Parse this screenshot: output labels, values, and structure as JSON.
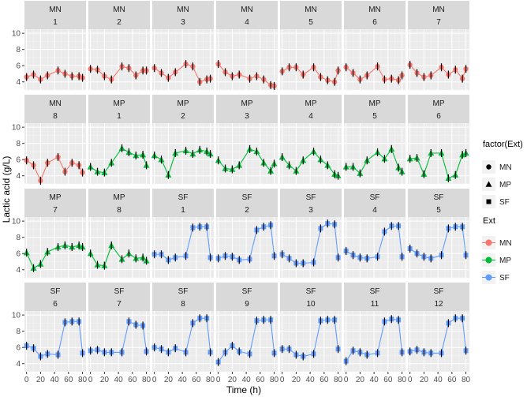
{
  "chart_data": {
    "type": "line",
    "facet_layout": "wrap, 7 columns, 4 rows, shared axes",
    "xlabel": "Time (h)",
    "ylabel": "Lactic acid (g/L)",
    "xlim": [
      -3,
      85
    ],
    "ylim": [
      3,
      10.5
    ],
    "xticks": [
      0,
      20,
      40,
      60,
      80
    ],
    "yticks": [
      4,
      6,
      8,
      10
    ],
    "x": [
      0,
      10,
      20,
      30,
      45,
      55,
      65,
      75,
      80
    ],
    "legend_shape": {
      "title": "factor(Ext)",
      "entries": [
        {
          "name": "MN",
          "shape": "circle"
        },
        {
          "name": "MP",
          "shape": "triangle"
        },
        {
          "name": "SF",
          "shape": "square"
        }
      ]
    },
    "legend_color": {
      "title": "Ext",
      "entries": [
        {
          "name": "MN",
          "color": "#F8766D"
        },
        {
          "name": "MP",
          "color": "#00BA38"
        },
        {
          "name": "SF",
          "color": "#619CFF"
        }
      ]
    },
    "colors": {
      "MN": "#F8766D",
      "MP": "#00BA38",
      "SF": "#619CFF"
    },
    "panels": [
      {
        "ext": "MN",
        "num": "1",
        "values": [
          4.6,
          4.9,
          4.3,
          4.8,
          5.4,
          5.0,
          4.7,
          4.7,
          4.5
        ]
      },
      {
        "ext": "MN",
        "num": "2",
        "values": [
          5.6,
          5.5,
          4.7,
          4.3,
          5.9,
          5.7,
          4.8,
          5.4,
          5.4
        ]
      },
      {
        "ext": "MN",
        "num": "3",
        "values": [
          5.7,
          5.1,
          4.5,
          5.2,
          6.2,
          5.9,
          4.0,
          4.3,
          4.4
        ]
      },
      {
        "ext": "MN",
        "num": "4",
        "values": [
          6.2,
          5.2,
          4.7,
          4.9,
          4.4,
          4.7,
          4.3,
          3.6,
          3.5
        ]
      },
      {
        "ext": "MN",
        "num": "5",
        "values": [
          5.3,
          5.8,
          5.8,
          4.9,
          5.8,
          4.6,
          4.2,
          4.0,
          5.4
        ]
      },
      {
        "ext": "MN",
        "num": "6",
        "values": [
          5.8,
          5.1,
          4.3,
          4.8,
          5.9,
          4.3,
          4.4,
          4.2,
          4.8
        ]
      },
      {
        "ext": "MN",
        "num": "7",
        "values": [
          6.1,
          5.1,
          4.6,
          4.8,
          5.8,
          4.9,
          5.5,
          4.4,
          5.6
        ]
      },
      {
        "ext": "MN",
        "num": "8",
        "values": [
          5.9,
          5.3,
          3.4,
          5.6,
          6.3,
          4.5,
          5.6,
          5.3,
          4.4
        ]
      },
      {
        "ext": "MP",
        "num": "1",
        "values": [
          5.1,
          4.5,
          4.4,
          5.6,
          7.4,
          6.9,
          6.5,
          6.6,
          5.3
        ]
      },
      {
        "ext": "MP",
        "num": "2",
        "values": [
          6.5,
          6.0,
          4.1,
          6.8,
          7.1,
          6.7,
          7.2,
          7.0,
          6.7
        ]
      },
      {
        "ext": "MP",
        "num": "3",
        "values": [
          5.9,
          4.9,
          4.8,
          5.3,
          7.3,
          7.0,
          5.6,
          4.6,
          5.5
        ]
      },
      {
        "ext": "MP",
        "num": "4",
        "values": [
          6.3,
          5.3,
          4.6,
          5.9,
          7.0,
          6.0,
          5.3,
          4.2,
          4.0
        ]
      },
      {
        "ext": "MP",
        "num": "5",
        "values": [
          5.1,
          5.1,
          4.3,
          5.9,
          6.9,
          6.1,
          7.3,
          5.0,
          4.5
        ]
      },
      {
        "ext": "MP",
        "num": "6",
        "values": [
          6.1,
          6.2,
          4.2,
          6.8,
          6.8,
          3.7,
          4.1,
          6.6,
          6.8
        ]
      },
      {
        "ext": "MP",
        "num": "7",
        "values": [
          6.1,
          4.2,
          4.7,
          6.2,
          6.8,
          7.0,
          6.8,
          7.0,
          6.8
        ]
      },
      {
        "ext": "MP",
        "num": "8",
        "values": [
          6.0,
          4.6,
          4.5,
          7.0,
          5.3,
          6.0,
          5.4,
          5.5,
          5.1
        ]
      },
      {
        "ext": "SF",
        "num": "1",
        "values": [
          5.9,
          5.9,
          5.2,
          5.5,
          5.7,
          9.2,
          9.3,
          9.3,
          5.5
        ]
      },
      {
        "ext": "SF",
        "num": "2",
        "values": [
          5.4,
          5.7,
          5.6,
          5.2,
          5.3,
          8.9,
          9.3,
          9.5,
          5.7
        ]
      },
      {
        "ext": "SF",
        "num": "3",
        "values": [
          5.9,
          5.4,
          4.8,
          4.8,
          4.9,
          9.1,
          9.7,
          9.6,
          5.5
        ]
      },
      {
        "ext": "SF",
        "num": "4",
        "values": [
          6.3,
          5.8,
          5.5,
          5.4,
          5.6,
          8.7,
          9.4,
          9.4,
          5.6
        ]
      },
      {
        "ext": "SF",
        "num": "5",
        "values": [
          6.6,
          6.0,
          5.6,
          5.4,
          5.8,
          9.1,
          9.3,
          9.3,
          5.8
        ]
      },
      {
        "ext": "SF",
        "num": "6",
        "values": [
          6.2,
          5.9,
          4.9,
          5.2,
          5.1,
          9.1,
          9.2,
          9.2,
          5.3
        ]
      },
      {
        "ext": "SF",
        "num": "7",
        "values": [
          5.6,
          5.7,
          5.4,
          5.4,
          5.4,
          9.2,
          8.8,
          8.7,
          5.5
        ]
      },
      {
        "ext": "SF",
        "num": "8",
        "values": [
          6.0,
          5.8,
          5.4,
          5.9,
          5.4,
          9.0,
          9.6,
          9.6,
          5.4
        ]
      },
      {
        "ext": "SF",
        "num": "9",
        "values": [
          4.2,
          5.4,
          6.2,
          5.5,
          5.2,
          9.3,
          9.4,
          9.4,
          5.3
        ]
      },
      {
        "ext": "SF",
        "num": "10",
        "values": [
          5.8,
          5.8,
          5.1,
          4.9,
          5.2,
          9.3,
          9.4,
          9.4,
          5.8
        ]
      },
      {
        "ext": "SF",
        "num": "11",
        "values": [
          4.3,
          5.6,
          5.4,
          5.1,
          5.3,
          9.2,
          9.5,
          9.4,
          5.4
        ]
      },
      {
        "ext": "SF",
        "num": "12",
        "values": [
          5.5,
          5.7,
          5.4,
          5.3,
          5.3,
          9.0,
          9.6,
          9.6,
          5.6
        ]
      }
    ]
  }
}
